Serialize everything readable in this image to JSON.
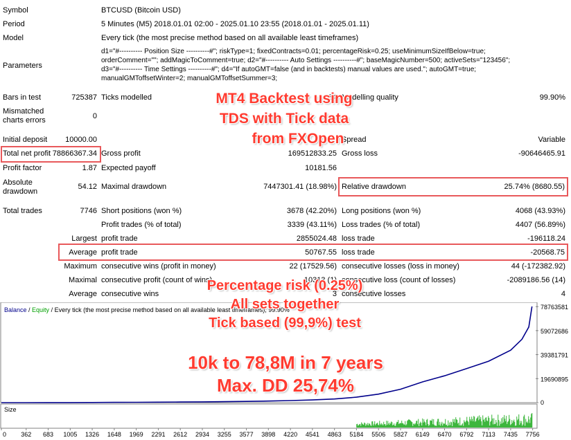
{
  "report": {
    "symbol_label": "Symbol",
    "symbol_value": "BTCUSD (Bitcoin USD)",
    "period_label": "Period",
    "period_value": "5 Minutes (M5) 2018.01.01 02:00 - 2025.01.10 23:55 (2018.01.01 - 2025.01.11)",
    "model_label": "Model",
    "model_value": "Every tick (the most precise method based on all available least timeframes)",
    "parameters_label": "Parameters",
    "parameters_lines": [
      "d1=\"#---------- Position Size ----------#\"; riskType=1; fixedContracts=0.01; percentageRisk=0.25; useMinimumSizeIfBelow=true;",
      "orderComment=\"\"; addMagicToComment=true; d2=\"#---------- Auto Settings ----------#\"; baseMagicNumber=500; activeSets=\"123456\";",
      "d3=\"#---------- Time Settings ----------#\"; d4=\"If autoGMT=false (and in backtests) manual values are used.\"; autoGMT=true;",
      "manualGMToffsetWinter=2; manualGMToffsetSummer=3;"
    ],
    "bars_label": "Bars in test",
    "bars_value": "725387",
    "ticks_label": "Ticks modelled",
    "ticks_value": "84",
    "quality_label": "Modelling quality",
    "quality_value": "99.90%",
    "mismatch_label_1": "Mismatched",
    "mismatch_label_2": "charts errors",
    "mismatch_value": "0",
    "deposit_label": "Initial deposit",
    "deposit_value": "10000.00",
    "spread_label": "Spread",
    "spread_value": "Variable",
    "net_profit_label": "Total net profit",
    "net_profit_value": "78866367.34",
    "gross_profit_label": "Gross profit",
    "gross_profit_value": "169512833.25",
    "gross_loss_label": "Gross loss",
    "gross_loss_value": "-90646465.91",
    "pf_label": "Profit factor",
    "pf_value": "1.87",
    "payoff_label": "Expected payoff",
    "payoff_value": "10181.56",
    "abs_dd_label_1": "Absolute",
    "abs_dd_label_2": "drawdown",
    "abs_dd_value": "54.12",
    "max_dd_label": "Maximal drawdown",
    "max_dd_value": "7447301.41 (18.98%)",
    "rel_dd_label": "Relative drawdown",
    "rel_dd_value": "25.74% (8680.55)",
    "trades_label": "Total trades",
    "trades_value": "7746",
    "short_label": "Short positions (won %)",
    "short_value": "3678 (42.20%)",
    "long_label": "Long positions (won %)",
    "long_value": "4068 (43.93%)",
    "profit_trades_label": "Profit trades (% of total)",
    "profit_trades_value": "3339 (43.11%)",
    "loss_trades_label": "Loss trades (% of total)",
    "loss_trades_value": "4407 (56.89%)",
    "largest_label": "Largest",
    "largest_profit_label": "profit trade",
    "largest_profit_value": "2855024.48",
    "largest_loss_label": "loss trade",
    "largest_loss_value": "-196118.24",
    "average_label": "Average",
    "average_profit_label": "profit trade",
    "average_profit_value": "50767.55",
    "average_loss_label": "loss trade",
    "average_loss_value": "-20568.75",
    "maximum_label": "Maximum",
    "max_cons_wins_label": "consecutive wins (profit in money)",
    "max_cons_wins_value": "22 (17529.56)",
    "max_cons_losses_label": "consecutive losses (loss in money)",
    "max_cons_losses_value": "44 (-172382.92)",
    "maximal_label": "Maximal",
    "maximal_profit_label": "consecutive profit (count of wins)",
    "maximal_profit_value": "10313 (1)",
    "maximal_loss_label": "consecutive loss (count of losses)",
    "maximal_loss_value": "-2089186.56 (14)",
    "avg_cons_label": "Average",
    "avg_cons_wins_label": "consecutive wins",
    "avg_cons_wins_value": "3",
    "avg_cons_losses_label": "consecutive losses",
    "avg_cons_losses_value": "4"
  },
  "overlay": {
    "title_lines": [
      "MT4 Backtest using",
      "TDS with Tick data",
      "from FXOpen"
    ],
    "risk_lines": [
      "Percentage risk (0.25%)",
      "All sets together",
      "Tick based (99,9%) test"
    ],
    "result_lines": [
      "10k to 78,8M in 7 years",
      "Max. DD 25,74%"
    ],
    "color": "#ff3b30"
  },
  "chart_data": {
    "type": "line",
    "legend": {
      "balance": "Balance",
      "sep1": " / ",
      "equity": "Equity",
      "sep2": " / ",
      "desc": "Every tick (the most precise method based on all available least timeframes), 99.90%"
    },
    "series": [
      {
        "name": "Balance",
        "color": "#00008b",
        "x": [
          0,
          362,
          683,
          1005,
          1326,
          1648,
          1969,
          2291,
          2612,
          2934,
          3255,
          3577,
          3898,
          4220,
          4541,
          4863,
          5184,
          5506,
          5827,
          6149,
          6470,
          6792,
          7113,
          7435,
          7600,
          7700,
          7746
        ],
        "values": [
          10000,
          20000,
          40000,
          80000,
          120000,
          200000,
          300000,
          400000,
          500000,
          650000,
          800000,
          1000000,
          1300000,
          1700000,
          2200000,
          3000000,
          4500000,
          7000000,
          11000000,
          17000000,
          22000000,
          28000000,
          34000000,
          43000000,
          52000000,
          62000000,
          78866367
        ]
      }
    ],
    "volume": {
      "name": "Size",
      "color": "#00a000",
      "x_start": 5184,
      "x_end": 7746
    },
    "ylim": [
      0,
      78866367
    ],
    "y_ticks": [
      "78763581",
      "59072686",
      "39381791",
      "19690895",
      "0"
    ],
    "y_tick_values": [
      78763581,
      59072686,
      39381791,
      19690895,
      0
    ],
    "x_ticks": [
      "0",
      "362",
      "683",
      "1005",
      "1326",
      "1648",
      "1969",
      "2291",
      "2612",
      "2934",
      "3255",
      "3577",
      "3898",
      "4220",
      "4541",
      "4863",
      "5184",
      "5506",
      "5827",
      "6149",
      "6470",
      "6792",
      "7113",
      "7435",
      "7756"
    ],
    "x_tick_values": [
      0,
      362,
      683,
      1005,
      1326,
      1648,
      1969,
      2291,
      2612,
      2934,
      3255,
      3577,
      3898,
      4220,
      4541,
      4863,
      5184,
      5506,
      5827,
      6149,
      6470,
      6792,
      7113,
      7435,
      7756
    ],
    "xlim": [
      0,
      7800
    ],
    "volume_label": "Size",
    "grid": false,
    "colors": {
      "equity": "#00a000"
    }
  }
}
